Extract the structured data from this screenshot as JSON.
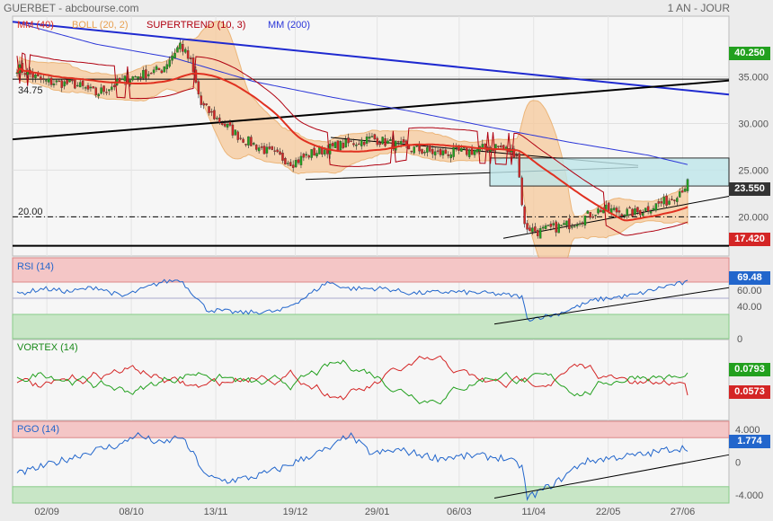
{
  "header": {
    "source": "GUERBET - abcbourse.com",
    "period": "1 AN - JOUR"
  },
  "colors": {
    "up": "#22a01e",
    "down": "#d42525",
    "mm40": "#e03020",
    "mm200": "#2b36d8",
    "boll": "#e8a050",
    "supertrend": "#b00010",
    "bg": "#ececec",
    "panel": "#f6f6f6"
  },
  "chart_data": [
    {
      "type": "candlestick",
      "legend": [
        {
          "label": "MM (40)",
          "color": "#e03020"
        },
        {
          "label": "BOLL (20, 2)",
          "color": "#e8a050"
        },
        {
          "label": "SUPERTREND (10, 3)",
          "color": "#b00010"
        },
        {
          "label": "MM (200)",
          "color": "#2b36d8"
        }
      ],
      "y_ticks": [
        "40.250",
        "35.000",
        "30.000",
        "25.000",
        "23.550",
        "20.000",
        "17.420"
      ],
      "ylim": [
        15.8,
        41.5
      ],
      "horizontal_lines": [
        {
          "label": "34.75",
          "value": 34.75
        },
        {
          "label": "20.00",
          "value": 20.0
        }
      ],
      "value_tags": [
        {
          "label": "40.250",
          "value": 40.25,
          "color": "#22a01e"
        },
        {
          "label": "23.550",
          "value": 23.55,
          "color": "#333333"
        },
        {
          "label": "17.420",
          "value": 17.42,
          "color": "#d42525"
        }
      ],
      "x_labels": [
        "02/09",
        "08/10",
        "13/11",
        "19/12",
        "29/01",
        "06/03",
        "11/04",
        "22/05",
        "27/06"
      ],
      "close_anchors": [
        [
          0,
          36.0
        ],
        [
          10,
          34.5
        ],
        [
          22,
          34.2
        ],
        [
          30,
          33.2
        ],
        [
          42,
          34.8
        ],
        [
          55,
          35.8
        ],
        [
          62,
          38.5
        ],
        [
          66,
          36.5
        ],
        [
          70,
          32.0
        ],
        [
          76,
          30.5
        ],
        [
          85,
          28.5
        ],
        [
          95,
          27.0
        ],
        [
          105,
          25.8
        ],
        [
          112,
          26.8
        ],
        [
          122,
          27.6
        ],
        [
          135,
          28.4
        ],
        [
          148,
          27.4
        ],
        [
          160,
          26.8
        ],
        [
          172,
          27.0
        ],
        [
          182,
          27.6
        ],
        [
          190,
          26.8
        ],
        [
          193,
          19.0
        ],
        [
          198,
          18.4
        ],
        [
          210,
          19.2
        ],
        [
          222,
          20.8
        ],
        [
          235,
          20.4
        ],
        [
          248,
          21.8
        ],
        [
          255,
          23.55
        ]
      ],
      "mm200_anchors": [
        [
          0,
          40.8
        ],
        [
          30,
          38.5
        ],
        [
          60,
          37.0
        ],
        [
          90,
          34.5
        ],
        [
          120,
          32.8
        ],
        [
          150,
          31.3
        ],
        [
          180,
          29.6
        ],
        [
          210,
          28.0
        ],
        [
          240,
          26.6
        ],
        [
          255,
          25.6
        ]
      ]
    },
    {
      "type": "line",
      "legend": [
        {
          "label": "RSI (14)",
          "color": "#2266cc"
        }
      ],
      "y_ticks": [
        "60.00",
        "40.00",
        "0"
      ],
      "ylim": [
        0,
        100
      ],
      "value_tags": [
        {
          "label": "69.48",
          "value": 69.48,
          "color": "#2266cc"
        }
      ],
      "anchors": [
        [
          0,
          55
        ],
        [
          10,
          62
        ],
        [
          20,
          58
        ],
        [
          30,
          64
        ],
        [
          40,
          52
        ],
        [
          55,
          70
        ],
        [
          62,
          73
        ],
        [
          68,
          52
        ],
        [
          72,
          36
        ],
        [
          85,
          32
        ],
        [
          100,
          34
        ],
        [
          110,
          52
        ],
        [
          118,
          70
        ],
        [
          126,
          62
        ],
        [
          140,
          62
        ],
        [
          150,
          56
        ],
        [
          165,
          58
        ],
        [
          180,
          56
        ],
        [
          192,
          52
        ],
        [
          194,
          24
        ],
        [
          205,
          30
        ],
        [
          220,
          48
        ],
        [
          235,
          54
        ],
        [
          248,
          66
        ],
        [
          255,
          69.48
        ]
      ]
    },
    {
      "type": "line",
      "legend": [
        {
          "label": "VORTEX (14)",
          "color": "#1a8a1a"
        }
      ],
      "value_tags": [
        {
          "label": "0.0793",
          "value": 0.0793,
          "color": "#22a01e"
        },
        {
          "label": "0.0573",
          "value": 0.0573,
          "color": "#d42525"
        }
      ]
    },
    {
      "type": "line",
      "legend": [
        {
          "label": "PGO (14)",
          "color": "#2266cc"
        }
      ],
      "y_ticks": [
        "4.000",
        "0",
        "-4.000"
      ],
      "ylim": [
        -5,
        5
      ],
      "value_tags": [
        {
          "label": "1.774",
          "value": 1.774,
          "color": "#2266cc"
        }
      ],
      "anchors": [
        [
          0,
          -1.5
        ],
        [
          10,
          -0.5
        ],
        [
          20,
          0.5
        ],
        [
          30,
          1.5
        ],
        [
          40,
          2.2
        ],
        [
          45,
          3.4
        ],
        [
          55,
          2.2
        ],
        [
          62,
          3.2
        ],
        [
          68,
          0.5
        ],
        [
          72,
          -1.8
        ],
        [
          80,
          -2.3
        ],
        [
          90,
          -1.8
        ],
        [
          100,
          -0.8
        ],
        [
          110,
          0.6
        ],
        [
          120,
          1.8
        ],
        [
          126,
          3.4
        ],
        [
          135,
          1.0
        ],
        [
          145,
          1.5
        ],
        [
          160,
          0.5
        ],
        [
          175,
          0.8
        ],
        [
          185,
          0.5
        ],
        [
          192,
          -0.5
        ],
        [
          194,
          -4.4
        ],
        [
          205,
          -2.5
        ],
        [
          215,
          0.0
        ],
        [
          225,
          0.5
        ],
        [
          240,
          1.0
        ],
        [
          248,
          1.6
        ],
        [
          255,
          1.774
        ]
      ]
    }
  ]
}
